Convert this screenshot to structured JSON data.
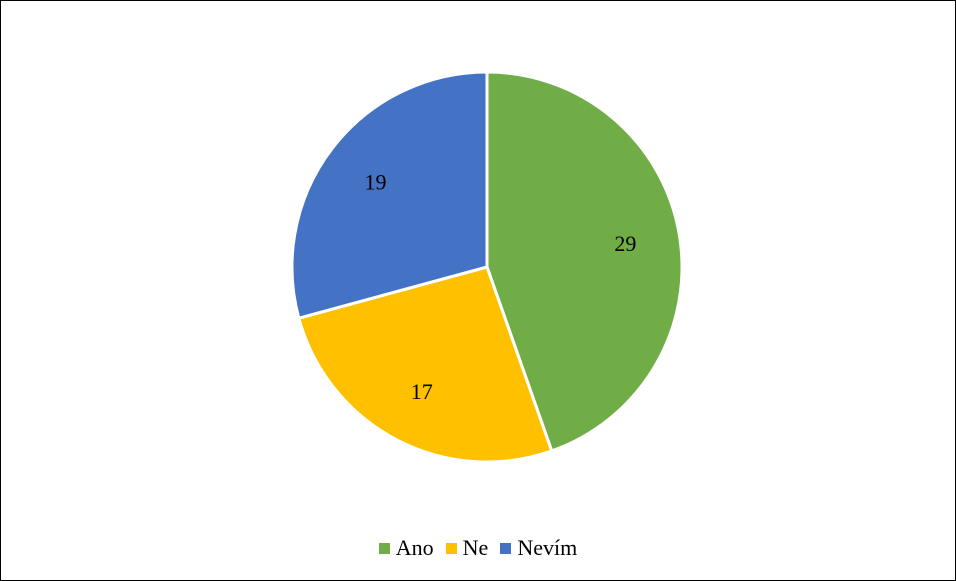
{
  "chart_data": {
    "type": "pie",
    "categories": [
      "Ano",
      "Ne",
      "Nevím"
    ],
    "values": [
      29,
      17,
      19
    ],
    "colors": [
      "#70ad47",
      "#ffc000",
      "#4472c4"
    ],
    "data_labels": [
      "29",
      "17",
      "19"
    ],
    "title": "",
    "legend_position": "bottom",
    "start": "12 o'clock, clockwise"
  },
  "legend": {
    "items": [
      {
        "label": "Ano",
        "color": "#70ad47"
      },
      {
        "label": "Ne",
        "color": "#ffc000"
      },
      {
        "label": "Nevím",
        "color": "#4472c4"
      }
    ]
  }
}
